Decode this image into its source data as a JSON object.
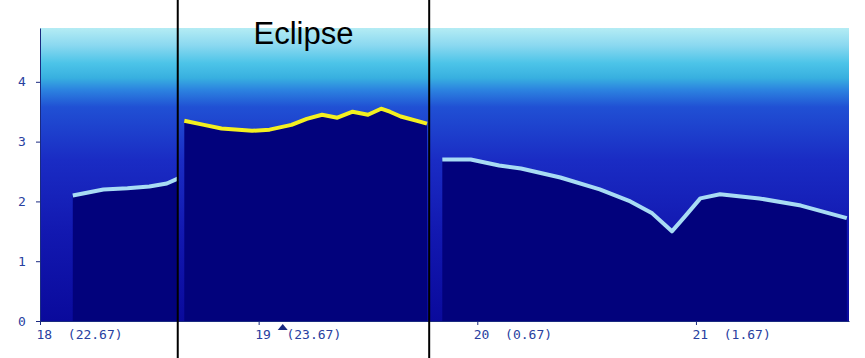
{
  "chart_data": {
    "type": "line",
    "x": [
      18.15,
      18.22,
      18.29,
      18.4,
      18.5,
      18.58,
      18.63,
      18.66,
      18.75,
      18.83,
      18.97,
      19.05,
      19.15,
      19.22,
      19.29,
      19.36,
      19.43,
      19.5,
      19.56,
      19.6,
      19.65,
      19.72,
      19.77,
      19.84,
      19.97,
      20.1,
      20.2,
      20.38,
      20.56,
      20.7,
      20.8,
      20.86,
      20.89,
      20.95,
      21.02,
      21.11,
      21.29,
      21.48,
      21.69
    ],
    "series": [
      {
        "color": "#a8dcf4",
        "values": [
          2.1,
          2.15,
          2.2,
          2.22,
          2.25,
          2.3,
          2.38,
          null,
          null,
          null,
          null,
          null,
          null,
          null,
          null,
          null,
          null,
          null,
          null,
          null,
          null,
          null,
          null,
          2.7,
          2.7,
          2.6,
          2.55,
          2.4,
          2.2,
          2.0,
          1.8,
          1.6,
          1.5,
          1.75,
          2.05,
          2.12,
          2.05,
          1.93,
          1.72
        ]
      },
      {
        "color": "#f4f020",
        "values": [
          null,
          null,
          null,
          null,
          null,
          null,
          null,
          3.35,
          3.28,
          3.22,
          3.18,
          3.2,
          3.28,
          3.38,
          3.45,
          3.4,
          3.5,
          3.45,
          3.55,
          3.5,
          3.42,
          3.35,
          3.3,
          null,
          null,
          null,
          null,
          null,
          null,
          null,
          null,
          null,
          null,
          null,
          null,
          null,
          null,
          null,
          null
        ]
      }
    ],
    "xlim": [
      18,
      21.7
    ],
    "xticks": [
      {
        "value": 18,
        "label": "18  (22.67)"
      },
      {
        "value": 19,
        "label": "19  (23.67)"
      },
      {
        "value": 20,
        "label": "20  (0.67)"
      },
      {
        "value": 21,
        "label": "21  (1.67)"
      }
    ],
    "ylim": [
      0,
      4.9
    ],
    "yticks": [
      0,
      1,
      2,
      3,
      4
    ],
    "eclipse": {
      "label": "Eclipse",
      "x": [
        18.63,
        19.78
      ]
    },
    "marker_x": 19.11
  }
}
